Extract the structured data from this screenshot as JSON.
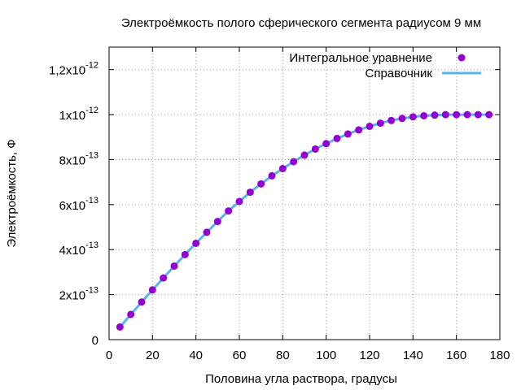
{
  "chart_data": {
    "type": "scatter",
    "title": "Электроёмкость полого сферического сегмента радиусом 9 мм",
    "xlabel": "Половина угла раствора, градусы",
    "ylabel": "Электроёмкость, Ф",
    "xlim": [
      0,
      180
    ],
    "ylim": [
      0,
      1.3e-12
    ],
    "grid": true,
    "legend_position": "top-right",
    "x_ticks": [
      0,
      20,
      40,
      60,
      80,
      100,
      120,
      140,
      160,
      180
    ],
    "x_tick_labels": [
      "0",
      "20",
      "40",
      "60",
      "80",
      "100",
      "120",
      "140",
      "160",
      "180"
    ],
    "y_ticks": [
      {
        "value": 0,
        "mantissa": "0",
        "exponent": ""
      },
      {
        "value": 2e-13,
        "mantissa": "2x10",
        "exponent": "-13"
      },
      {
        "value": 4e-13,
        "mantissa": "4x10",
        "exponent": "-13"
      },
      {
        "value": 6e-13,
        "mantissa": "6x10",
        "exponent": "-13"
      },
      {
        "value": 8e-13,
        "mantissa": "8x10",
        "exponent": "-13"
      },
      {
        "value": 1e-12,
        "mantissa": "1x10",
        "exponent": "-12"
      },
      {
        "value": 1.2e-12,
        "mantissa": "1,2x10",
        "exponent": "-12"
      }
    ],
    "series": [
      {
        "name": "Интегральное уравнение",
        "style": "points",
        "color": "#9400d3",
        "x": [
          5,
          10,
          15,
          20,
          25,
          30,
          35,
          40,
          45,
          50,
          55,
          60,
          65,
          70,
          75,
          80,
          85,
          90,
          95,
          100,
          105,
          110,
          115,
          120,
          125,
          130,
          135,
          140,
          145,
          150,
          155,
          160,
          165,
          170,
          175
        ],
        "y": [
          5.6e-14,
          1.12e-13,
          1.67e-13,
          2.21e-13,
          2.74e-13,
          3.27e-13,
          3.78e-13,
          4.28e-13,
          4.77e-13,
          5.25e-13,
          5.72e-13,
          6.14e-13,
          6.55e-13,
          6.92e-13,
          7.28e-13,
          7.6e-13,
          7.91e-13,
          8.2e-13,
          8.47e-13,
          8.71e-13,
          8.94e-13,
          9.14e-13,
          9.32e-13,
          9.48e-13,
          9.62e-13,
          9.74e-13,
          9.83e-13,
          9.9e-13,
          9.95e-13,
          9.98e-13,
          1e-12,
          1e-12,
          1e-12,
          1e-12,
          1e-12
        ]
      },
      {
        "name": "Справочник",
        "style": "line",
        "color": "#56b4e9",
        "x": [
          5,
          10,
          15,
          20,
          25,
          30,
          35,
          40,
          45,
          50,
          55,
          60,
          65,
          70,
          75,
          80,
          85,
          90,
          95,
          100,
          105,
          110,
          115,
          120,
          125,
          130,
          135,
          140,
          145,
          150,
          155,
          160,
          165,
          170,
          175
        ],
        "y": [
          5.6e-14,
          1.12e-13,
          1.67e-13,
          2.21e-13,
          2.74e-13,
          3.27e-13,
          3.78e-13,
          4.28e-13,
          4.77e-13,
          5.25e-13,
          5.72e-13,
          6.14e-13,
          6.55e-13,
          6.92e-13,
          7.28e-13,
          7.6e-13,
          7.91e-13,
          8.2e-13,
          8.47e-13,
          8.71e-13,
          8.94e-13,
          9.14e-13,
          9.32e-13,
          9.48e-13,
          9.62e-13,
          9.74e-13,
          9.83e-13,
          9.9e-13,
          9.95e-13,
          9.98e-13,
          1e-12,
          1e-12,
          1e-12,
          1e-12,
          1e-12
        ]
      }
    ]
  }
}
